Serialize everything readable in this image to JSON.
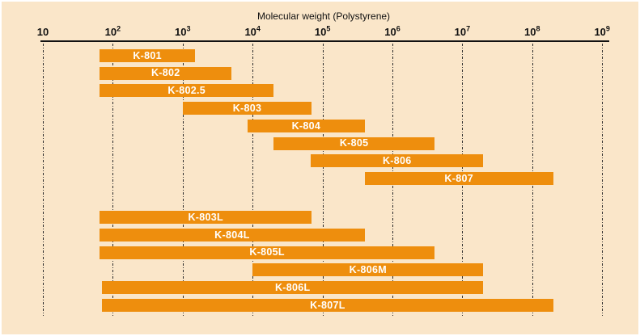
{
  "chart_data": {
    "type": "bar",
    "orientation": "horizontal-range",
    "title": "Molecular weight (Polystyrene)",
    "x_axis": {
      "scale": "log10",
      "min": 10,
      "max": 1000000000,
      "tick_exponents": [
        1,
        2,
        3,
        4,
        5,
        6,
        7,
        8,
        9
      ],
      "grid": true,
      "grid_style": "dash-dot"
    },
    "series": [
      {
        "label": "K-801",
        "mw_min": 65,
        "mw_max": 1500,
        "group": 1
      },
      {
        "label": "K-802",
        "mw_min": 65,
        "mw_max": 5000,
        "group": 1
      },
      {
        "label": "K-802.5",
        "mw_min": 65,
        "mw_max": 20000,
        "group": 1
      },
      {
        "label": "K-803",
        "mw_min": 1000,
        "mw_max": 70000,
        "group": 1
      },
      {
        "label": "K-804",
        "mw_min": 8500,
        "mw_max": 400000,
        "group": 1
      },
      {
        "label": "K-805",
        "mw_min": 20000,
        "mw_max": 4000000,
        "group": 1
      },
      {
        "label": "K-806",
        "mw_min": 68000,
        "mw_max": 20000000,
        "group": 1
      },
      {
        "label": "K-807",
        "mw_min": 400000,
        "mw_max": 200000000,
        "group": 1
      },
      {
        "label": "K-803L",
        "mw_min": 65,
        "mw_max": 70000,
        "group": 2
      },
      {
        "label": "K-804L",
        "mw_min": 65,
        "mw_max": 400000,
        "group": 2
      },
      {
        "label": "K-805L",
        "mw_min": 65,
        "mw_max": 4000000,
        "group": 2
      },
      {
        "label": "K-806M",
        "mw_min": 10000,
        "mw_max": 20000000,
        "group": 2
      },
      {
        "label": "K-806L",
        "mw_min": 70,
        "mw_max": 20000000,
        "group": 2
      },
      {
        "label": "K-807L",
        "mw_min": 70,
        "mw_max": 200000000,
        "group": 2
      }
    ],
    "colors": {
      "background": "#FAE6C9",
      "bar": "#EE8E0D",
      "bar_label_text": "#FFFFFF",
      "axis_text": "#111111",
      "axis_line": "#111111",
      "grid_line": "#2B2B2B",
      "frame": "#FFFFFF"
    }
  }
}
